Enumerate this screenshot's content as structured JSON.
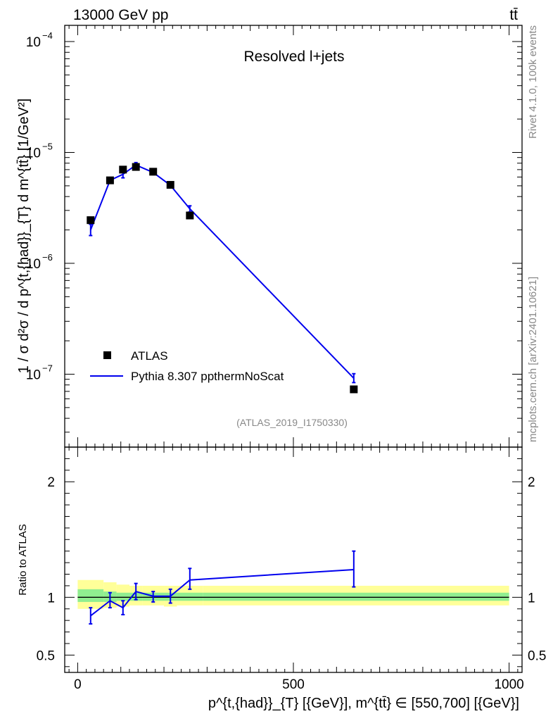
{
  "header": {
    "energy_label": "13000 GeV pp",
    "process_label": "tt̄"
  },
  "side": {
    "rivet_label": "Rivet 4.1.0,  100k events",
    "mcplots_label": "mcplots.cern.ch [arXiv:2401.10621]"
  },
  "chart_data": [
    {
      "type": "scatter",
      "panel": "main",
      "title": "Resolved l+jets",
      "analysis_tag": "(ATLAS_2019_I1750330)",
      "yscale": "log",
      "xlim": [
        -30,
        1030
      ],
      "ylim": [
        2.2e-08,
        0.00014
      ],
      "ylabel": "1 / σ d²σ / d p^{t,{had}}_{T} d m^{tt̄} [1/GeV²]",
      "ytick_labels": [
        {
          "value": 0.0001,
          "base": "10",
          "exp": "−4"
        },
        {
          "value": 1e-05,
          "base": "10",
          "exp": "−5"
        },
        {
          "value": 1e-06,
          "base": "10",
          "exp": "−6"
        },
        {
          "value": 1e-07,
          "base": "10",
          "exp": "−7"
        }
      ],
      "legend": [
        "ATLAS",
        "Pythia 8.307 ppthermNoScat"
      ],
      "legend_position": "bottom-left",
      "series": [
        {
          "name": "ATLAS",
          "marker": "square",
          "x": [
            30,
            75,
            105,
            135,
            175,
            215,
            260,
            640
          ],
          "y": [
            2.45e-06,
            5.6e-06,
            7e-06,
            7.4e-06,
            6.7e-06,
            5.1e-06,
            2.7e-06,
            7.3e-08
          ]
        },
        {
          "name": "Pythia 8.307 ppthermNoScat",
          "color": "#0000ee",
          "x": [
            30,
            75,
            105,
            135,
            175,
            215,
            260,
            640
          ],
          "y": [
            2e-06,
            5.6e-06,
            6.35e-06,
            7.7e-06,
            6.6e-06,
            5.05e-06,
            3.1e-06,
            9.2e-08
          ],
          "err_up": [
            2.25e-06,
            5.9e-06,
            6.8e-06,
            8.1e-06,
            6.9e-06,
            5.3e-06,
            3.3e-06,
            1.01e-07
          ],
          "err_dn": [
            1.78e-06,
            5.3e-06,
            5.9e-06,
            7.3e-06,
            6.3e-06,
            4.8e-06,
            2.9e-06,
            8.4e-08
          ]
        }
      ]
    },
    {
      "type": "line",
      "panel": "ratio",
      "ylabel": "Ratio to ATLAS",
      "xlabel": "p^{t,{had}}_{T} [{GeV}], m^{tt̄} ∈ [550,700] [{GeV}]",
      "xlim": [
        -30,
        1030
      ],
      "ylim": [
        0.35,
        2.3
      ],
      "x_ticks": [
        0,
        500,
        1000
      ],
      "y_ticks": [
        0.5,
        1,
        2
      ],
      "reference": 1,
      "bins": [
        {
          "lo": 0,
          "hi": 60,
          "band_stat": [
            0.96,
            1.07
          ],
          "band_total": [
            0.9,
            1.15
          ]
        },
        {
          "lo": 60,
          "hi": 90,
          "band_stat": [
            0.96,
            1.05
          ],
          "band_total": [
            0.91,
            1.13
          ]
        },
        {
          "lo": 90,
          "hi": 120,
          "band_stat": [
            0.97,
            1.04
          ],
          "band_total": [
            0.92,
            1.11
          ]
        },
        {
          "lo": 120,
          "hi": 150,
          "band_stat": [
            0.97,
            1.04
          ],
          "band_total": [
            0.93,
            1.1
          ]
        },
        {
          "lo": 150,
          "hi": 200,
          "band_stat": [
            0.97,
            1.04
          ],
          "band_total": [
            0.93,
            1.1
          ]
        },
        {
          "lo": 200,
          "hi": 230,
          "band_stat": [
            0.97,
            1.04
          ],
          "band_total": [
            0.92,
            1.1
          ]
        },
        {
          "lo": 230,
          "hi": 290,
          "band_stat": [
            0.97,
            1.04
          ],
          "band_total": [
            0.93,
            1.1
          ]
        },
        {
          "lo": 290,
          "hi": 1000,
          "band_stat": [
            0.97,
            1.04
          ],
          "band_total": [
            0.93,
            1.1
          ]
        }
      ],
      "series": [
        {
          "name": "Pythia 8.307 ppthermNoScat",
          "color": "#0000ee",
          "x": [
            30,
            75,
            105,
            135,
            175,
            215,
            260,
            640
          ],
          "y": [
            0.84,
            0.97,
            0.91,
            1.05,
            1.01,
            1.01,
            1.15,
            1.24
          ],
          "err_up": [
            0.91,
            1.04,
            0.97,
            1.12,
            1.05,
            1.07,
            1.25,
            1.4
          ],
          "err_dn": [
            0.77,
            0.91,
            0.85,
            0.98,
            0.96,
            0.95,
            1.07,
            1.09
          ]
        }
      ]
    }
  ]
}
